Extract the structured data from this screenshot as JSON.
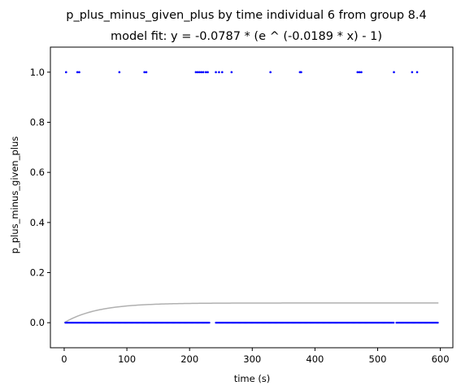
{
  "chart_data": {
    "type": "scatter",
    "title": "p_plus_minus_given_plus by time individual 6 from group 8.4",
    "subtitle": "model fit: y = -0.0787 * (e ^ (-0.0189 * x) - 1)",
    "xlabel": "time (s)",
    "ylabel": "p_plus_minus_given_plus",
    "xlim": [
      -22,
      620
    ],
    "ylim": [
      -0.1,
      1.1
    ],
    "xticks": [
      0,
      100,
      200,
      300,
      400,
      500,
      600
    ],
    "yticks": [
      0.0,
      0.2,
      0.4,
      0.6,
      0.8,
      1.0
    ],
    "xtick_labels": [
      "0",
      "100",
      "200",
      "300",
      "400",
      "500",
      "600"
    ],
    "ytick_labels": [
      "0.0",
      "0.2",
      "0.4",
      "0.6",
      "0.8",
      "1.0"
    ],
    "grid": false,
    "colors": {
      "points": "#0000ff",
      "fit": "#b0b0b0",
      "axes": "#000000"
    },
    "fit": {
      "a": -0.0787,
      "b": -0.0189,
      "x_start": 0,
      "x_end": 597
    },
    "series": [
      {
        "values_at_one_x": [
          3,
          21,
          24,
          88,
          128,
          131,
          210,
          213,
          216,
          219,
          222,
          226,
          229,
          242,
          247,
          252,
          267,
          329,
          376,
          378,
          468,
          471,
          474,
          526,
          555,
          563
        ],
        "values_at_zero_x_ranges": [
          [
            2,
            232
          ],
          [
            242,
            526
          ],
          [
            530,
            597
          ]
        ]
      }
    ]
  }
}
